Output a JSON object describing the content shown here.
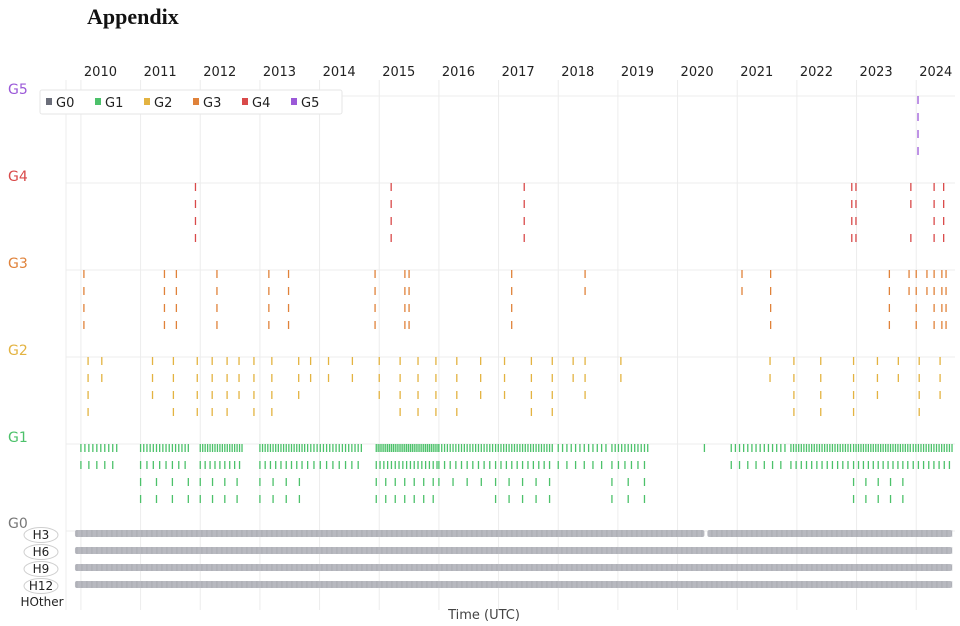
{
  "page": {
    "heading": "Appendix"
  },
  "chart_data": {
    "type": "scatter",
    "xlabel": "Time (UTC)",
    "x_tick_labels": [
      "2010",
      "2011",
      "2012",
      "2013",
      "2014",
      "2015",
      "2016",
      "2017",
      "2018",
      "2019",
      "2020",
      "2021",
      "2022",
      "2023",
      "2024"
    ],
    "xlim": [
      2009.75,
      2024.65
    ],
    "levels": [
      "G0",
      "G1",
      "G2",
      "G3",
      "G4",
      "G5"
    ],
    "level_colors": {
      "G0": "#6b6e7a",
      "G1": "#4cc16a",
      "G2": "#e3b341",
      "G3": "#e0823a",
      "G4": "#d94a4a",
      "G5": "#9b59d8"
    },
    "legend": {
      "position": "top-left",
      "entries": [
        "G0",
        "G1",
        "G2",
        "G3",
        "G4",
        "G5"
      ]
    },
    "row_labels": [
      "H3",
      "H6",
      "H9",
      "H12",
      "HOther"
    ],
    "grid": true,
    "series": [
      {
        "name": "G5",
        "events": [
          {
            "x": 2024.03,
            "rows": [
              1,
              1,
              1,
              1
            ]
          }
        ]
      },
      {
        "name": "G4",
        "events": [
          {
            "x": 2011.92,
            "rows": [
              1,
              1,
              1,
              1
            ]
          },
          {
            "x": 2015.2,
            "rows": [
              1,
              1,
              1,
              1
            ]
          },
          {
            "x": 2017.43,
            "rows": [
              1,
              1,
              1,
              1
            ]
          },
          {
            "x": 2022.92,
            "rows": [
              1,
              1,
              1,
              1
            ]
          },
          {
            "x": 2022.99,
            "rows": [
              1,
              1,
              1,
              1
            ]
          },
          {
            "x": 2023.91,
            "rows": [
              1,
              1,
              0,
              1
            ]
          },
          {
            "x": 2024.3,
            "rows": [
              1,
              1,
              1,
              1
            ]
          },
          {
            "x": 2024.46,
            "rows": [
              1,
              1,
              1,
              1
            ]
          }
        ]
      },
      {
        "name": "G3",
        "events": [
          {
            "x": 2010.05,
            "rows": [
              1,
              1,
              1,
              1
            ]
          },
          {
            "x": 2011.4,
            "rows": [
              1,
              1,
              1,
              1
            ]
          },
          {
            "x": 2011.6,
            "rows": [
              1,
              1,
              1,
              1
            ]
          },
          {
            "x": 2012.28,
            "rows": [
              1,
              1,
              1,
              1
            ]
          },
          {
            "x": 2013.15,
            "rows": [
              1,
              1,
              1,
              1
            ]
          },
          {
            "x": 2013.48,
            "rows": [
              1,
              1,
              1,
              1
            ]
          },
          {
            "x": 2014.93,
            "rows": [
              1,
              1,
              1,
              1
            ]
          },
          {
            "x": 2015.43,
            "rows": [
              1,
              1,
              1,
              1
            ]
          },
          {
            "x": 2015.5,
            "rows": [
              1,
              1,
              1,
              1
            ]
          },
          {
            "x": 2017.22,
            "rows": [
              1,
              1,
              1,
              1
            ]
          },
          {
            "x": 2018.45,
            "rows": [
              1,
              1,
              0,
              0
            ]
          },
          {
            "x": 2021.08,
            "rows": [
              1,
              1,
              0,
              0
            ]
          },
          {
            "x": 2021.56,
            "rows": [
              1,
              1,
              1,
              1
            ]
          },
          {
            "x": 2023.55,
            "rows": [
              1,
              1,
              1,
              1
            ]
          },
          {
            "x": 2023.88,
            "rows": [
              1,
              1,
              0,
              0
            ]
          },
          {
            "x": 2024.0,
            "rows": [
              1,
              1,
              1,
              1
            ]
          },
          {
            "x": 2024.18,
            "rows": [
              1,
              1,
              0,
              0
            ]
          },
          {
            "x": 2024.3,
            "rows": [
              1,
              1,
              1,
              1
            ]
          },
          {
            "x": 2024.43,
            "rows": [
              1,
              1,
              1,
              1
            ]
          },
          {
            "x": 2024.5,
            "rows": [
              1,
              1,
              1,
              1
            ]
          }
        ]
      },
      {
        "name": "G2",
        "events": [
          {
            "x": 2010.12,
            "rows": [
              1,
              1,
              1,
              1
            ]
          },
          {
            "x": 2010.35,
            "rows": [
              1,
              1,
              0,
              0
            ]
          },
          {
            "x": 2011.2,
            "rows": [
              1,
              1,
              1,
              0
            ]
          },
          {
            "x": 2011.55,
            "rows": [
              1,
              1,
              1,
              1
            ]
          },
          {
            "x": 2011.95,
            "rows": [
              1,
              1,
              1,
              1
            ]
          },
          {
            "x": 2012.2,
            "rows": [
              1,
              1,
              1,
              1
            ]
          },
          {
            "x": 2012.45,
            "rows": [
              1,
              1,
              1,
              1
            ]
          },
          {
            "x": 2012.65,
            "rows": [
              1,
              1,
              1,
              0
            ]
          },
          {
            "x": 2012.9,
            "rows": [
              1,
              1,
              1,
              1
            ]
          },
          {
            "x": 2013.2,
            "rows": [
              1,
              1,
              1,
              1
            ]
          },
          {
            "x": 2013.65,
            "rows": [
              1,
              1,
              1,
              0
            ]
          },
          {
            "x": 2013.85,
            "rows": [
              1,
              1,
              0,
              0
            ]
          },
          {
            "x": 2014.15,
            "rows": [
              1,
              1,
              0,
              0
            ]
          },
          {
            "x": 2014.55,
            "rows": [
              1,
              1,
              0,
              0
            ]
          },
          {
            "x": 2015.0,
            "rows": [
              1,
              1,
              1,
              0
            ]
          },
          {
            "x": 2015.35,
            "rows": [
              1,
              1,
              1,
              1
            ]
          },
          {
            "x": 2015.65,
            "rows": [
              1,
              1,
              1,
              1
            ]
          },
          {
            "x": 2015.95,
            "rows": [
              1,
              1,
              1,
              1
            ]
          },
          {
            "x": 2016.3,
            "rows": [
              1,
              1,
              1,
              1
            ]
          },
          {
            "x": 2016.7,
            "rows": [
              1,
              1,
              1,
              0
            ]
          },
          {
            "x": 2017.1,
            "rows": [
              1,
              1,
              1,
              0
            ]
          },
          {
            "x": 2017.55,
            "rows": [
              1,
              1,
              1,
              1
            ]
          },
          {
            "x": 2017.9,
            "rows": [
              1,
              1,
              1,
              1
            ]
          },
          {
            "x": 2018.25,
            "rows": [
              1,
              1,
              0,
              0
            ]
          },
          {
            "x": 2018.45,
            "rows": [
              1,
              1,
              1,
              0
            ]
          },
          {
            "x": 2019.05,
            "rows": [
              1,
              1,
              0,
              0
            ]
          },
          {
            "x": 2021.55,
            "rows": [
              1,
              1,
              0,
              0
            ]
          },
          {
            "x": 2021.95,
            "rows": [
              1,
              1,
              1,
              1
            ]
          },
          {
            "x": 2022.4,
            "rows": [
              1,
              1,
              1,
              1
            ]
          },
          {
            "x": 2022.95,
            "rows": [
              1,
              1,
              1,
              1
            ]
          },
          {
            "x": 2023.35,
            "rows": [
              1,
              1,
              1,
              0
            ]
          },
          {
            "x": 2023.7,
            "rows": [
              1,
              1,
              0,
              0
            ]
          },
          {
            "x": 2024.05,
            "rows": [
              1,
              1,
              1,
              1
            ]
          },
          {
            "x": 2024.4,
            "rows": [
              1,
              1,
              1,
              0
            ]
          }
        ]
      },
      {
        "name": "G1",
        "density": [
          {
            "from": 2010.0,
            "to": 2010.6,
            "rows": [
              1,
              1,
              0,
              0
            ],
            "count": 10
          },
          {
            "from": 2011.0,
            "to": 2011.8,
            "rows": [
              1,
              1,
              1,
              1
            ],
            "count": 16
          },
          {
            "from": 2012.0,
            "to": 2012.7,
            "rows": [
              1,
              1,
              1,
              1
            ],
            "count": 18
          },
          {
            "from": 2013.0,
            "to": 2013.75,
            "rows": [
              1,
              1,
              1,
              1
            ],
            "count": 18
          },
          {
            "from": 2013.8,
            "to": 2014.7,
            "rows": [
              1,
              1,
              0,
              0
            ],
            "count": 18
          },
          {
            "from": 2014.95,
            "to": 2016.0,
            "rows": [
              1,
              1,
              1,
              1
            ],
            "count": 34
          },
          {
            "from": 2016.0,
            "to": 2016.9,
            "rows": [
              1,
              1,
              1,
              0
            ],
            "count": 20
          },
          {
            "from": 2016.95,
            "to": 2017.9,
            "rows": [
              1,
              1,
              1,
              1
            ],
            "count": 22
          },
          {
            "from": 2018.0,
            "to": 2018.8,
            "rows": [
              1,
              1,
              0,
              0
            ],
            "count": 12
          },
          {
            "from": 2018.9,
            "to": 2019.5,
            "rows": [
              1,
              1,
              1,
              1
            ],
            "count": 12
          },
          {
            "from": 2020.45,
            "to": 2020.5,
            "rows": [
              1,
              0,
              0,
              0
            ],
            "count": 1
          },
          {
            "from": 2020.9,
            "to": 2021.8,
            "rows": [
              1,
              1,
              0,
              0
            ],
            "count": 14
          },
          {
            "from": 2021.9,
            "to": 2022.9,
            "rows": [
              1,
              1,
              0,
              0
            ],
            "count": 24
          },
          {
            "from": 2022.95,
            "to": 2023.9,
            "rows": [
              1,
              1,
              1,
              1
            ],
            "count": 24
          },
          {
            "from": 2023.95,
            "to": 2024.6,
            "rows": [
              1,
              1,
              0,
              0
            ],
            "count": 16
          }
        ]
      },
      {
        "name": "G0",
        "continuous": true,
        "from": 2009.9,
        "to": 2024.6,
        "gap": [
          2020.45,
          2020.5
        ]
      }
    ]
  }
}
